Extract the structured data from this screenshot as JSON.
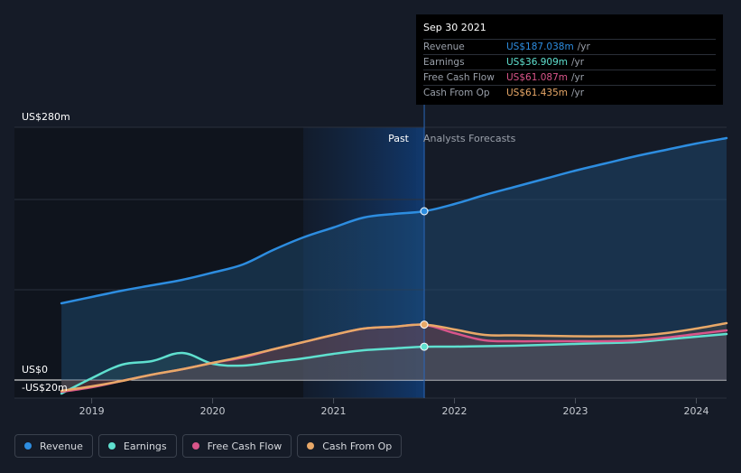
{
  "chart_data": {
    "type": "area",
    "x_ticks": [
      "2019",
      "2020",
      "2021",
      "2022",
      "2023",
      "2024"
    ],
    "y_labels": {
      "top": "US$280m",
      "zero": "US$0",
      "neg": "-US$20m"
    },
    "ylim": [
      -20,
      280
    ],
    "region_labels": {
      "past": "Past",
      "forecast": "Analysts Forecasts"
    },
    "tooltip": {
      "date": "Sep 30 2021",
      "rows": [
        {
          "name": "Revenue",
          "value": "US$187.038m",
          "unit": "/yr",
          "color": "#2d8de0"
        },
        {
          "name": "Earnings",
          "value": "US$36.909m",
          "unit": "/yr",
          "color": "#5fe0cf"
        },
        {
          "name": "Free Cash Flow",
          "value": "US$61.087m",
          "unit": "/yr",
          "color": "#d9558a"
        },
        {
          "name": "Cash From Op",
          "value": "US$61.435m",
          "unit": "/yr",
          "color": "#e8a868"
        }
      ]
    },
    "series": [
      {
        "name": "Revenue",
        "color": "#2d8de0",
        "x": [
          2018.75,
          2019.0,
          2019.25,
          2019.5,
          2019.75,
          2020.0,
          2020.25,
          2020.5,
          2020.75,
          2021.0,
          2021.25,
          2021.5,
          2021.75,
          2022.0,
          2022.25,
          2022.5,
          2022.75,
          2023.0,
          2023.25,
          2023.5,
          2023.75,
          2024.0,
          2024.25
        ],
        "values": [
          85,
          92,
          99,
          105,
          111,
          119,
          128,
          144,
          158,
          169,
          180,
          184,
          187,
          195,
          205,
          214,
          223,
          232,
          240,
          248,
          255,
          262,
          268
        ]
      },
      {
        "name": "Earnings",
        "color": "#5fe0cf",
        "x": [
          2018.75,
          2019.0,
          2019.25,
          2019.5,
          2019.75,
          2020.0,
          2020.25,
          2020.5,
          2020.75,
          2021.0,
          2021.25,
          2021.5,
          2021.75,
          2022.0,
          2022.25,
          2022.5,
          2022.75,
          2023.0,
          2023.25,
          2023.5,
          2023.75,
          2024.0,
          2024.25
        ],
        "values": [
          -15,
          2,
          17,
          21,
          30,
          18,
          16,
          20,
          24,
          29,
          33,
          35,
          36.909,
          37,
          37.5,
          38,
          39,
          40,
          41,
          42,
          45,
          48,
          51
        ]
      },
      {
        "name": "Free Cash Flow",
        "color": "#d9558a",
        "x": [
          2018.75,
          2019.0,
          2019.25,
          2019.5,
          2019.75,
          2020.0,
          2020.25,
          2020.5,
          2020.75,
          2021.0,
          2021.25,
          2021.5,
          2021.75,
          2022.0,
          2022.25,
          2022.5,
          2022.75,
          2023.0,
          2023.25,
          2023.5,
          2023.75,
          2024.0,
          2024.25
        ],
        "values": [
          -13,
          -8,
          -1,
          6,
          12,
          19,
          25,
          34,
          42,
          50,
          57,
          59,
          61.087,
          52,
          44,
          43,
          43,
          43,
          43,
          44,
          47,
          51,
          55
        ]
      },
      {
        "name": "Cash From Op",
        "color": "#e8a868",
        "x": [
          2018.75,
          2019.0,
          2019.25,
          2019.5,
          2019.75,
          2020.0,
          2020.25,
          2020.5,
          2020.75,
          2021.0,
          2021.25,
          2021.5,
          2021.75,
          2022.0,
          2022.25,
          2022.5,
          2022.75,
          2023.0,
          2023.25,
          2023.5,
          2023.75,
          2024.0,
          2024.25
        ],
        "values": [
          -12,
          -7,
          -1,
          6,
          12,
          19,
          26,
          34,
          42,
          50,
          57,
          59,
          61.435,
          56,
          50,
          49.5,
          49,
          48.5,
          48.5,
          49,
          52,
          57,
          63
        ]
      }
    ],
    "split_x": 2021.75,
    "shade_start_x": 2020.75,
    "x_range": [
      2018.6,
      2024.25
    ]
  },
  "legend": [
    {
      "label": "Revenue",
      "color": "#2d8de0"
    },
    {
      "label": "Earnings",
      "color": "#5fe0cf"
    },
    {
      "label": "Free Cash Flow",
      "color": "#d9558a"
    },
    {
      "label": "Cash From Op",
      "color": "#e8a868"
    }
  ]
}
